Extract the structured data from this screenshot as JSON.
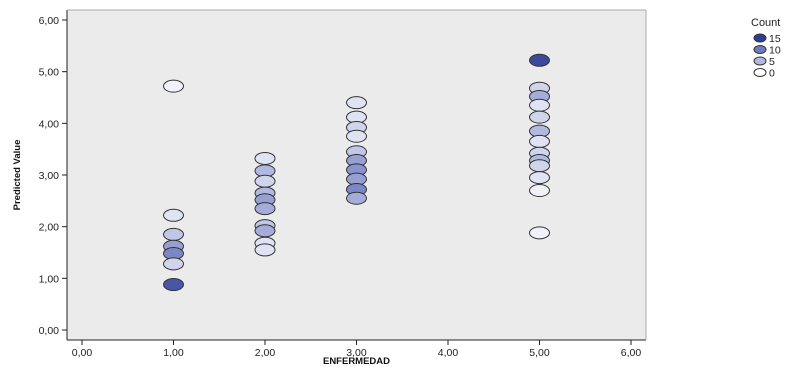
{
  "chart_data": {
    "type": "scatter",
    "xlabel": "ENFERMEDAD",
    "ylabel": "Predicted Value",
    "xlim": [
      0,
      6
    ],
    "ylim": [
      0,
      6
    ],
    "x_ticks": [
      "0,00",
      "1,00",
      "2,00",
      "3,00",
      "4,00",
      "5,00",
      "6,00"
    ],
    "y_ticks": [
      "0,00",
      "1,00",
      "2,00",
      "3,00",
      "4,00",
      "5,00",
      "6,00"
    ],
    "grid": false,
    "background": "#ebebeb",
    "legend": {
      "title": "Count",
      "placement": "right",
      "entries": [
        {
          "label": "15",
          "count": 15,
          "color": "#2e3e96"
        },
        {
          "label": "10",
          "count": 10,
          "color": "#6f7ac0"
        },
        {
          "label": "5",
          "count": 5,
          "color": "#b2b9e0"
        },
        {
          "label": "0",
          "count": 0,
          "color": "#ffffff"
        }
      ]
    },
    "points": [
      {
        "x": 1,
        "y": 4.72,
        "count": 1
      },
      {
        "x": 1,
        "y": 2.22,
        "count": 2
      },
      {
        "x": 1,
        "y": 1.85,
        "count": 4
      },
      {
        "x": 1,
        "y": 1.62,
        "count": 7
      },
      {
        "x": 1,
        "y": 1.48,
        "count": 9
      },
      {
        "x": 1,
        "y": 1.28,
        "count": 3
      },
      {
        "x": 1,
        "y": 0.88,
        "count": 13
      },
      {
        "x": 2,
        "y": 3.32,
        "count": 2
      },
      {
        "x": 2,
        "y": 3.08,
        "count": 5
      },
      {
        "x": 2,
        "y": 2.88,
        "count": 3
      },
      {
        "x": 2,
        "y": 2.65,
        "count": 5
      },
      {
        "x": 2,
        "y": 2.52,
        "count": 7
      },
      {
        "x": 2,
        "y": 2.35,
        "count": 6
      },
      {
        "x": 2,
        "y": 2.02,
        "count": 4
      },
      {
        "x": 2,
        "y": 1.92,
        "count": 6
      },
      {
        "x": 2,
        "y": 1.68,
        "count": 2
      },
      {
        "x": 2,
        "y": 1.55,
        "count": 2
      },
      {
        "x": 3,
        "y": 4.4,
        "count": 2
      },
      {
        "x": 3,
        "y": 4.12,
        "count": 2
      },
      {
        "x": 3,
        "y": 3.92,
        "count": 3
      },
      {
        "x": 3,
        "y": 3.75,
        "count": 2
      },
      {
        "x": 3,
        "y": 3.45,
        "count": 4
      },
      {
        "x": 3,
        "y": 3.28,
        "count": 7
      },
      {
        "x": 3,
        "y": 3.1,
        "count": 8
      },
      {
        "x": 3,
        "y": 2.92,
        "count": 7
      },
      {
        "x": 3,
        "y": 2.72,
        "count": 9
      },
      {
        "x": 3,
        "y": 2.55,
        "count": 6
      },
      {
        "x": 5,
        "y": 5.22,
        "count": 14
      },
      {
        "x": 5,
        "y": 4.68,
        "count": 3
      },
      {
        "x": 5,
        "y": 4.52,
        "count": 6
      },
      {
        "x": 5,
        "y": 4.35,
        "count": 2
      },
      {
        "x": 5,
        "y": 4.12,
        "count": 3
      },
      {
        "x": 5,
        "y": 3.85,
        "count": 5
      },
      {
        "x": 5,
        "y": 3.65,
        "count": 2
      },
      {
        "x": 5,
        "y": 3.42,
        "count": 3
      },
      {
        "x": 5,
        "y": 3.28,
        "count": 5
      },
      {
        "x": 5,
        "y": 3.18,
        "count": 3
      },
      {
        "x": 5,
        "y": 2.95,
        "count": 2
      },
      {
        "x": 5,
        "y": 2.7,
        "count": 1
      },
      {
        "x": 5,
        "y": 1.88,
        "count": 1
      }
    ]
  }
}
